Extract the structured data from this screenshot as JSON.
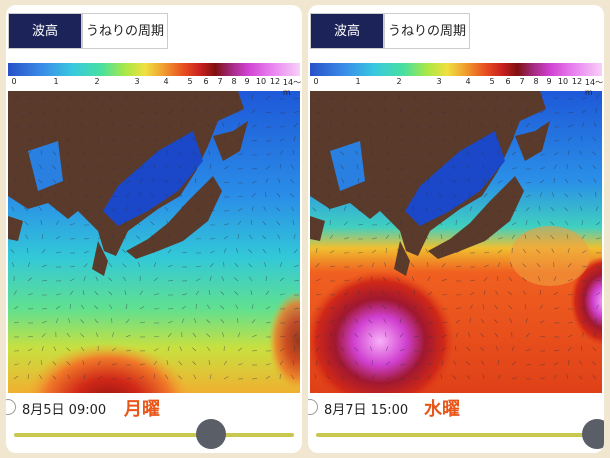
{
  "panels": [
    {
      "tabs": [
        "波高",
        "うねりの周期"
      ],
      "scale": [
        "0",
        "1",
        "2",
        "3",
        "4",
        "5",
        "6",
        "7",
        "8",
        "9",
        "10",
        "12",
        "14〜m"
      ],
      "date": "8月5日 09:00",
      "weekday": "月曜"
    },
    {
      "tabs": [
        "波高",
        "うねりの周期"
      ],
      "scale": [
        "0",
        "1",
        "2",
        "3",
        "4",
        "5",
        "6",
        "7",
        "8",
        "9",
        "10",
        "12",
        "14〜m"
      ],
      "date": "8月7日 15:00",
      "weekday": "水曜"
    }
  ]
}
